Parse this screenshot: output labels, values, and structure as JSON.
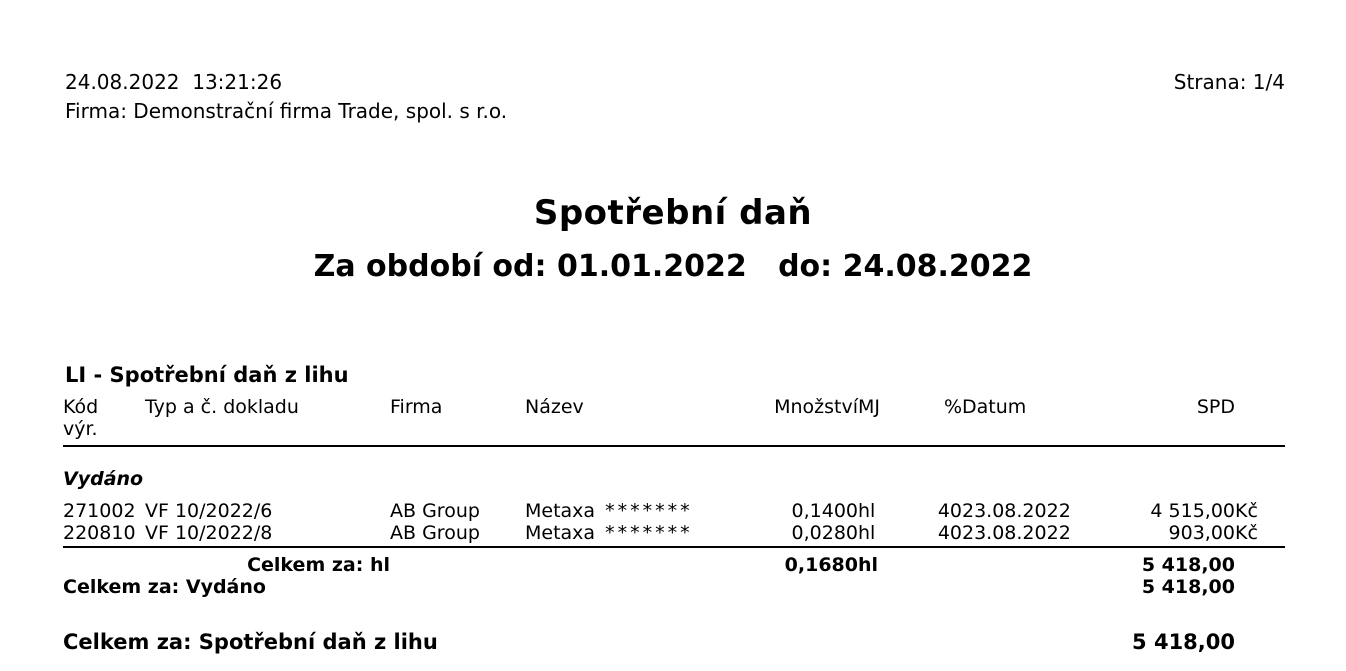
{
  "header": {
    "timestamp": "24.08.2022  13:21:26",
    "company_line": "Firma: Demonstrační firma Trade, spol. s r.o.",
    "page_label": "Strana: 1/4"
  },
  "title": {
    "main": "Spotřební daň",
    "period": "Za období od: 01.01.2022   do: 24.08.2022"
  },
  "section": {
    "heading": "LI - Spotřební daň z lihu",
    "columns": {
      "kod_line1": "Kód",
      "kod_line2": "výr.",
      "typ": "Typ a č. dokladu",
      "firma": "Firma",
      "nazev": "Název",
      "mnozstvi": "Množství",
      "mj": "MJ",
      "pct": "%",
      "datum": "Datum",
      "spd": "SPD"
    },
    "group_label": "Vydáno",
    "rows": [
      {
        "kod": "271002",
        "doc": "VF 10/2022/6",
        "firma": "AB Group",
        "nazev": "Metaxa",
        "mask": "*******",
        "qty": "0,1400",
        "unit": "hl",
        "pct": "40",
        "date": "23.08.2022",
        "amount": "4 515,00",
        "currency": "Kč"
      },
      {
        "kod": "220810",
        "doc": "VF 10/2022/8",
        "firma": "AB Group",
        "nazev": "Metaxa",
        "mask": "*******",
        "qty": "0,0280",
        "unit": "hl",
        "pct": "40",
        "date": "23.08.2022",
        "amount": "903,00",
        "currency": "Kč"
      }
    ],
    "totals": {
      "unit_total": {
        "label": "Celkem za: hl",
        "qty": "0,1680",
        "unit": "hl",
        "amount": "5 418,00"
      },
      "group_total": {
        "label": "Celkem za: Vydáno",
        "amount": "5 418,00"
      },
      "section_total": {
        "label": "Celkem za: Spotřební daň z lihu",
        "amount": "5 418,00"
      }
    }
  }
}
